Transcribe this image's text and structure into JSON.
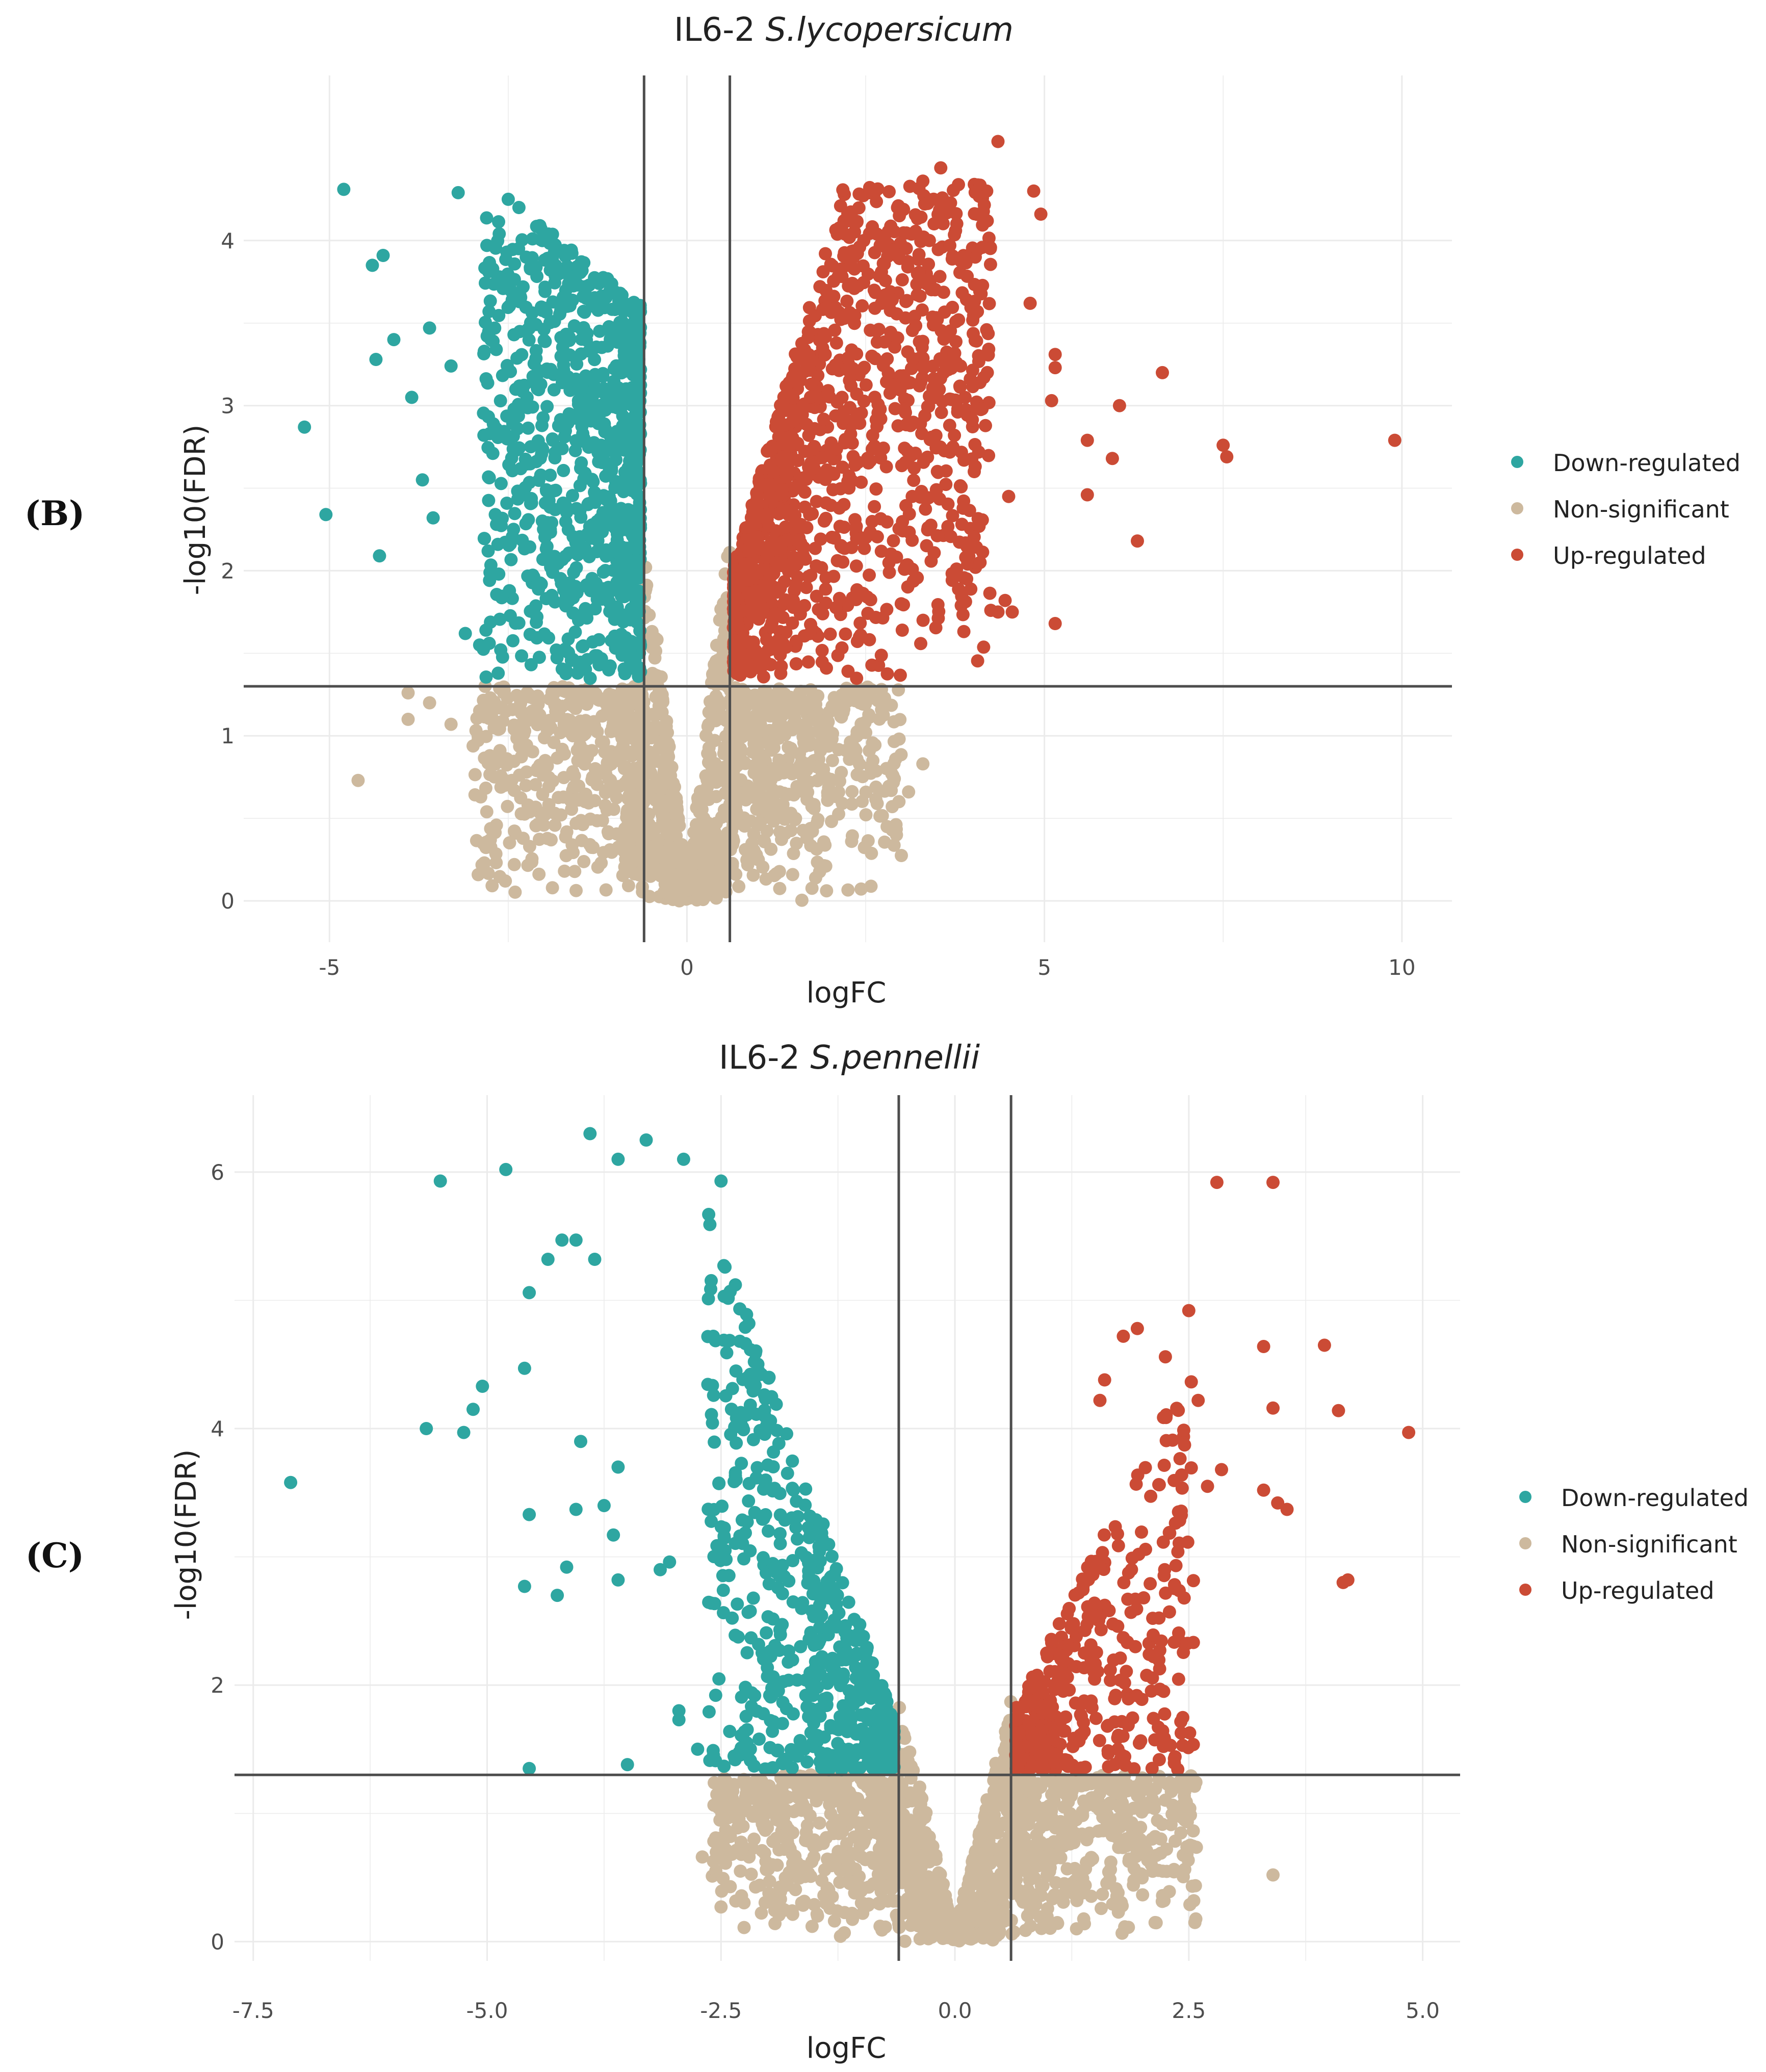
{
  "colors": {
    "down": "#2EA6A1",
    "ns": "#CDB99E",
    "up": "#CB4B35",
    "grid": "#EBEBEB",
    "threshold": "#4D4D4D",
    "text": "#222222",
    "tick_text": "#4D4D4D"
  },
  "chart_data": [
    {
      "type": "scatter",
      "panel_label": "(B)",
      "title_prefix": "IL6-2 ",
      "title_species": "S.lycopersicum",
      "xlabel": "logFC",
      "ylabel": "-log10(FDR)",
      "xlim": [
        -6.2,
        10.7
      ],
      "ylim": [
        -0.25,
        5.0
      ],
      "xticks": [
        -5,
        0,
        5,
        10
      ],
      "xtick_labels": [
        "-5",
        "0",
        "5",
        "10"
      ],
      "yticks": [
        0,
        1,
        2,
        3,
        4
      ],
      "ytick_labels": [
        "0",
        "1",
        "2",
        "3",
        "4"
      ],
      "logfc_threshold": 0.6,
      "fdr_threshold_log": 1.3,
      "legend": [
        {
          "key": "down",
          "label": "Down-regulated"
        },
        {
          "key": "ns",
          "label": "Non-significant"
        },
        {
          "key": "up",
          "label": "Up-regulated"
        }
      ],
      "highlighted_points": {
        "down": [
          [
            -4.8,
            4.31
          ],
          [
            -5.35,
            2.87
          ],
          [
            -5.05,
            2.34
          ],
          [
            -4.4,
            3.85
          ],
          [
            -4.25,
            3.91
          ],
          [
            -4.1,
            3.4
          ],
          [
            -4.35,
            3.28
          ],
          [
            -4.3,
            2.09
          ],
          [
            -3.7,
            2.55
          ],
          [
            -3.55,
            2.32
          ],
          [
            -3.2,
            4.29
          ],
          [
            -2.5,
            4.25
          ],
          [
            -2.35,
            4.2
          ],
          [
            -3.1,
            1.62
          ],
          [
            -2.9,
            1.55
          ],
          [
            -3.85,
            3.05
          ],
          [
            -3.6,
            3.47
          ],
          [
            -3.3,
            3.24
          ]
        ],
        "ns": [
          [
            -4.6,
            0.73
          ],
          [
            -3.3,
            1.07
          ],
          [
            -2.75,
            0.37
          ],
          [
            -2.8,
            0.54
          ],
          [
            -2.2,
            0.33
          ],
          [
            -3.9,
            1.1
          ],
          [
            -3.9,
            1.26
          ],
          [
            -3.6,
            1.2
          ],
          [
            -2.45,
            0.73
          ],
          [
            -1.9,
            0.37
          ],
          [
            2.9,
            0.74
          ],
          [
            3.3,
            0.83
          ],
          [
            2.8,
            0.45
          ],
          [
            -1.55,
            0.47
          ],
          [
            -1.2,
            0.23
          ],
          [
            2.5,
            1.02
          ],
          [
            3.1,
            0.66
          ],
          [
            1.8,
            0.14
          ],
          [
            -0.85,
            0.22
          ]
        ],
        "up": [
          [
            9.9,
            2.79
          ],
          [
            7.5,
            2.76
          ],
          [
            7.55,
            2.69
          ],
          [
            6.65,
            3.2
          ],
          [
            6.05,
            3.0
          ],
          [
            5.95,
            2.68
          ],
          [
            6.3,
            2.18
          ],
          [
            5.6,
            2.79
          ],
          [
            5.6,
            2.46
          ],
          [
            5.15,
            3.31
          ],
          [
            5.15,
            3.23
          ],
          [
            5.15,
            1.68
          ],
          [
            4.35,
            4.6
          ],
          [
            4.85,
            4.3
          ],
          [
            4.95,
            4.16
          ],
          [
            4.8,
            3.62
          ],
          [
            4.5,
            2.45
          ],
          [
            4.45,
            1.82
          ],
          [
            4.35,
            1.75
          ],
          [
            4.25,
            1.76
          ],
          [
            4.55,
            1.75
          ],
          [
            5.1,
            3.03
          ],
          [
            4.1,
            2.05
          ],
          [
            3.3,
            4.36
          ],
          [
            3.55,
            4.44
          ]
        ]
      }
    },
    {
      "type": "scatter",
      "panel_label": "(C)",
      "title_prefix": "IL6-2 ",
      "title_species": "S.pennellii",
      "xlabel": "logFC",
      "ylabel": "-log10(FDR)",
      "xlim": [
        -7.7,
        5.4
      ],
      "ylim": [
        -0.15,
        6.6
      ],
      "xticks": [
        -7.5,
        -5.0,
        -2.5,
        0.0,
        2.5,
        5.0
      ],
      "xtick_labels": [
        "-7.5",
        "-5.0",
        "-2.5",
        "0.0",
        "2.5",
        "5.0"
      ],
      "yticks": [
        0,
        2,
        4,
        6
      ],
      "ytick_labels": [
        "0",
        "2",
        "4",
        "6"
      ],
      "logfc_threshold": 0.6,
      "fdr_threshold_log": 1.3,
      "legend": [
        {
          "key": "down",
          "label": "Down-regulated"
        },
        {
          "key": "ns",
          "label": "Non-significant"
        },
        {
          "key": "up",
          "label": "Up-regulated"
        }
      ],
      "highlighted_points": {
        "down": [
          [
            -7.1,
            3.58
          ],
          [
            -5.5,
            5.93
          ],
          [
            -4.8,
            6.02
          ],
          [
            -3.9,
            6.3
          ],
          [
            -3.3,
            6.25
          ],
          [
            -3.6,
            6.1
          ],
          [
            -2.9,
            6.1
          ],
          [
            -2.5,
            5.93
          ],
          [
            -5.65,
            4.0
          ],
          [
            -5.25,
            3.97
          ],
          [
            -5.15,
            4.15
          ],
          [
            -5.05,
            4.33
          ],
          [
            -4.6,
            4.47
          ],
          [
            -4.55,
            5.06
          ],
          [
            -4.35,
            5.32
          ],
          [
            -4.2,
            5.47
          ],
          [
            -4.05,
            5.47
          ],
          [
            -4.0,
            3.9
          ],
          [
            -3.6,
            3.7
          ],
          [
            -4.05,
            3.37
          ],
          [
            -3.75,
            3.4
          ],
          [
            -4.15,
            2.92
          ],
          [
            -4.25,
            2.7
          ],
          [
            -4.6,
            2.77
          ],
          [
            -4.55,
            3.33
          ],
          [
            -3.65,
            3.17
          ],
          [
            -3.6,
            2.82
          ],
          [
            -3.15,
            2.9
          ],
          [
            -3.05,
            2.96
          ],
          [
            -2.95,
            1.73
          ],
          [
            -2.75,
            1.5
          ],
          [
            -4.55,
            1.35
          ],
          [
            -3.5,
            1.38
          ],
          [
            -2.95,
            1.8
          ],
          [
            -3.85,
            5.32
          ]
        ],
        "ns": [
          [
            -2.5,
            0.27
          ],
          [
            -2.45,
            0.87
          ],
          [
            -2.4,
            0.82
          ],
          [
            -2.7,
            0.66
          ],
          [
            -2.2,
            0.66
          ],
          [
            -1.4,
            0.36
          ],
          [
            -1.1,
            0.22
          ],
          [
            -0.8,
            0.12
          ],
          [
            2.5,
            0.98
          ],
          [
            3.4,
            0.52
          ],
          [
            2.2,
            0.8
          ],
          [
            1.3,
            0.1
          ]
        ],
        "up": [
          [
            2.8,
            5.92
          ],
          [
            3.4,
            5.92
          ],
          [
            2.5,
            4.92
          ],
          [
            3.3,
            4.64
          ],
          [
            3.95,
            4.65
          ],
          [
            4.1,
            4.14
          ],
          [
            4.85,
            3.97
          ],
          [
            3.4,
            4.16
          ],
          [
            2.6,
            4.22
          ],
          [
            2.25,
            4.56
          ],
          [
            1.95,
            4.78
          ],
          [
            1.8,
            4.72
          ],
          [
            4.15,
            2.8
          ],
          [
            4.2,
            2.82
          ],
          [
            3.3,
            3.52
          ],
          [
            3.45,
            3.42
          ],
          [
            3.55,
            3.37
          ],
          [
            2.85,
            3.68
          ],
          [
            2.7,
            3.55
          ],
          [
            1.6,
            4.38
          ],
          [
            1.55,
            4.22
          ]
        ]
      }
    }
  ]
}
